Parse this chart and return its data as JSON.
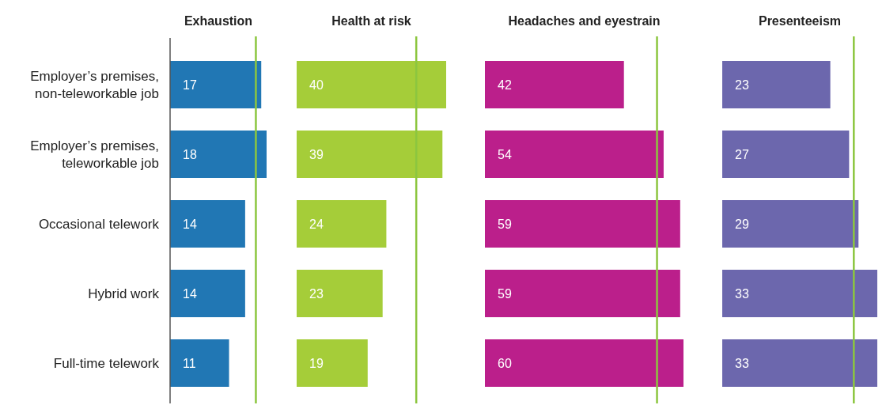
{
  "chart_data": [
    {
      "type": "bar",
      "orientation": "horizontal",
      "title": "Exhaustion",
      "categories": [
        "Employer’s premises, non-teleworkable job",
        "Employer’s premises, teleworkable job",
        "Occasional telework",
        "Hybrid work",
        "Full-time telework"
      ],
      "values": [
        17,
        18,
        14,
        14,
        11
      ],
      "color": "#2177b4",
      "data_labels": true,
      "tick_labels": "y",
      "ref_lines": [
        {
          "axis": "x",
          "value": 16,
          "color": "#8cc63f"
        }
      ]
    },
    {
      "type": "bar",
      "orientation": "horizontal",
      "title": "Health at risk",
      "values": [
        40,
        39,
        24,
        23,
        19
      ],
      "color": "#a5cd39",
      "data_labels": true,
      "tick_labels": false,
      "ref_lines": [
        {
          "axis": "x",
          "value": 32,
          "color": "#8cc63f"
        }
      ]
    },
    {
      "type": "bar",
      "orientation": "horizontal",
      "title": "Headaches and eyestrain",
      "values": [
        42,
        54,
        59,
        59,
        60
      ],
      "color": "#bb1f8b",
      "data_labels": true,
      "tick_labels": false,
      "ref_lines": [
        {
          "axis": "x",
          "value": 52,
          "color": "#8cc63f"
        }
      ]
    },
    {
      "type": "bar",
      "orientation": "horizontal",
      "title": "Presenteeism",
      "values": [
        23,
        27,
        29,
        33,
        33
      ],
      "color": "#6c67ad",
      "data_labels": true,
      "tick_labels": false,
      "ref_lines": [
        {
          "axis": "x",
          "value": 28,
          "color": "#8cc63f"
        }
      ]
    }
  ]
}
